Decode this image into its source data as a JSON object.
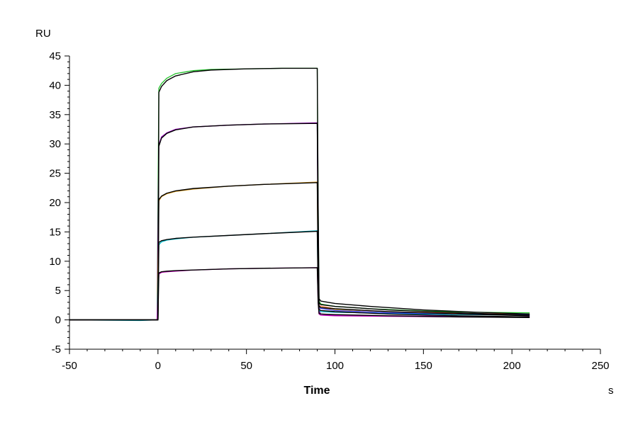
{
  "chart_data": {
    "type": "line",
    "title": "",
    "xlabel": "Time",
    "x_unit": "s",
    "ylabel": "",
    "y_unit": "RU",
    "xlim": [
      -50,
      250
    ],
    "ylim": [
      -5,
      45
    ],
    "x_ticks": [
      -50,
      0,
      50,
      100,
      150,
      200,
      250
    ],
    "y_ticks": [
      -5,
      0,
      5,
      10,
      15,
      20,
      25,
      30,
      35,
      40,
      45
    ],
    "grid": false,
    "legend": "none",
    "series": [
      {
        "color": "#22c22a",
        "points": [
          [
            -50,
            0.0
          ],
          [
            -0.5,
            0.0
          ],
          [
            0.5,
            39.5
          ],
          [
            2,
            40.3
          ],
          [
            5,
            41.2
          ],
          [
            10,
            42.0
          ],
          [
            20,
            42.5
          ],
          [
            30,
            42.7
          ],
          [
            50,
            42.8
          ],
          [
            70,
            42.9
          ],
          [
            90,
            42.9
          ],
          [
            90.5,
            20.0
          ],
          [
            91,
            3.2
          ],
          [
            92,
            2.7
          ],
          [
            100,
            2.3
          ],
          [
            120,
            1.9
          ],
          [
            150,
            1.5
          ],
          [
            180,
            1.3
          ],
          [
            210,
            1.2
          ]
        ]
      },
      {
        "color": "#a000c8",
        "points": [
          [
            -50,
            0.0
          ],
          [
            -0.5,
            0.0
          ],
          [
            0.5,
            29.8
          ],
          [
            2,
            31.2
          ],
          [
            5,
            31.9
          ],
          [
            10,
            32.5
          ],
          [
            20,
            32.9
          ],
          [
            40,
            33.2
          ],
          [
            60,
            33.4
          ],
          [
            90,
            33.6
          ],
          [
            90.5,
            12.0
          ],
          [
            91,
            1.5
          ],
          [
            92,
            1.0
          ],
          [
            100,
            0.8
          ],
          [
            130,
            0.7
          ],
          [
            170,
            0.6
          ],
          [
            210,
            0.5
          ]
        ]
      },
      {
        "color": "#e0a020",
        "points": [
          [
            -50,
            0.0
          ],
          [
            -0.5,
            0.0
          ],
          [
            0.5,
            20.3
          ],
          [
            2,
            21.0
          ],
          [
            5,
            21.5
          ],
          [
            10,
            21.9
          ],
          [
            20,
            22.3
          ],
          [
            40,
            22.8
          ],
          [
            60,
            23.1
          ],
          [
            90,
            23.5
          ],
          [
            90.5,
            8.0
          ],
          [
            91,
            2.3
          ],
          [
            92,
            2.0
          ],
          [
            100,
            1.7
          ],
          [
            130,
            1.2
          ],
          [
            170,
            1.0
          ],
          [
            210,
            0.9
          ]
        ]
      },
      {
        "color": "#00b8c8",
        "points": [
          [
            -50,
            0.0
          ],
          [
            -10,
            -0.1
          ],
          [
            -0.5,
            0.0
          ],
          [
            0.5,
            12.8
          ],
          [
            2,
            13.3
          ],
          [
            5,
            13.6
          ],
          [
            10,
            13.8
          ],
          [
            20,
            14.1
          ],
          [
            40,
            14.4
          ],
          [
            60,
            14.7
          ],
          [
            90,
            15.2
          ],
          [
            90.5,
            5.0
          ],
          [
            91,
            1.6
          ],
          [
            92,
            1.4
          ],
          [
            100,
            1.3
          ],
          [
            130,
            1.1
          ],
          [
            170,
            0.9
          ],
          [
            210,
            0.8
          ]
        ]
      },
      {
        "color": "#c000b8",
        "points": [
          [
            -50,
            0.0
          ],
          [
            -0.5,
            0.0
          ],
          [
            0.5,
            7.8
          ],
          [
            2,
            8.1
          ],
          [
            5,
            8.2
          ],
          [
            10,
            8.3
          ],
          [
            20,
            8.5
          ],
          [
            40,
            8.7
          ],
          [
            60,
            8.8
          ],
          [
            90,
            8.9
          ],
          [
            90.5,
            3.0
          ],
          [
            91,
            1.0
          ],
          [
            92,
            0.8
          ],
          [
            100,
            0.7
          ],
          [
            130,
            0.6
          ],
          [
            170,
            0.5
          ],
          [
            210,
            0.5
          ]
        ]
      },
      {
        "color": "#ff8040",
        "points": [
          [
            90,
            23.4
          ],
          [
            91,
            2.4
          ],
          [
            100,
            1.9
          ],
          [
            130,
            1.4
          ],
          [
            170,
            1.1
          ],
          [
            210,
            1.0
          ]
        ]
      },
      {
        "color": "#4040ff",
        "points": [
          [
            90,
            33.5
          ],
          [
            91,
            2.0
          ],
          [
            100,
            1.6
          ],
          [
            130,
            1.2
          ],
          [
            170,
            1.0
          ],
          [
            210,
            0.9
          ]
        ]
      },
      {
        "color": "#000000",
        "points": [
          [
            -50,
            0.0
          ],
          [
            0,
            0.0
          ],
          [
            0.5,
            38.8
          ],
          [
            2,
            39.8
          ],
          [
            5,
            40.8
          ],
          [
            10,
            41.6
          ],
          [
            20,
            42.3
          ],
          [
            30,
            42.6
          ],
          [
            50,
            42.8
          ],
          [
            70,
            42.9
          ],
          [
            90,
            42.9
          ],
          [
            90.5,
            20.0
          ],
          [
            91,
            3.6
          ],
          [
            92,
            3.2
          ],
          [
            100,
            2.8
          ],
          [
            120,
            2.3
          ],
          [
            150,
            1.7
          ],
          [
            180,
            1.3
          ],
          [
            210,
            1.0
          ]
        ]
      },
      {
        "color": "#000000",
        "points": [
          [
            -50,
            0.0
          ],
          [
            0,
            0.0
          ],
          [
            0.5,
            29.6
          ],
          [
            2,
            31.0
          ],
          [
            5,
            31.8
          ],
          [
            10,
            32.4
          ],
          [
            20,
            32.9
          ],
          [
            40,
            33.2
          ],
          [
            60,
            33.4
          ],
          [
            90,
            33.5
          ],
          [
            90.5,
            12.0
          ],
          [
            91,
            2.9
          ],
          [
            92,
            2.6
          ],
          [
            100,
            2.3
          ],
          [
            130,
            1.7
          ],
          [
            170,
            1.2
          ],
          [
            210,
            0.8
          ]
        ]
      },
      {
        "color": "#000000",
        "points": [
          [
            -50,
            0.0
          ],
          [
            0,
            0.0
          ],
          [
            0.5,
            20.5
          ],
          [
            2,
            21.1
          ],
          [
            5,
            21.6
          ],
          [
            10,
            22.0
          ],
          [
            20,
            22.4
          ],
          [
            40,
            22.8
          ],
          [
            60,
            23.1
          ],
          [
            90,
            23.4
          ],
          [
            90.5,
            8.0
          ],
          [
            91,
            2.4
          ],
          [
            92,
            2.1
          ],
          [
            100,
            1.9
          ],
          [
            130,
            1.4
          ],
          [
            170,
            1.0
          ],
          [
            210,
            0.7
          ]
        ]
      },
      {
        "color": "#000000",
        "points": [
          [
            -50,
            0.0
          ],
          [
            0,
            0.0
          ],
          [
            0.5,
            13.2
          ],
          [
            2,
            13.5
          ],
          [
            5,
            13.7
          ],
          [
            10,
            13.9
          ],
          [
            20,
            14.1
          ],
          [
            40,
            14.4
          ],
          [
            60,
            14.7
          ],
          [
            90,
            15.1
          ],
          [
            90.5,
            5.0
          ],
          [
            91,
            1.8
          ],
          [
            92,
            1.6
          ],
          [
            100,
            1.4
          ],
          [
            130,
            1.0
          ],
          [
            170,
            0.7
          ],
          [
            210,
            0.5
          ]
        ]
      },
      {
        "color": "#000000",
        "points": [
          [
            -50,
            0.0
          ],
          [
            0,
            0.0
          ],
          [
            0.5,
            8.0
          ],
          [
            2,
            8.2
          ],
          [
            5,
            8.3
          ],
          [
            10,
            8.4
          ],
          [
            20,
            8.5
          ],
          [
            40,
            8.7
          ],
          [
            60,
            8.8
          ],
          [
            90,
            8.9
          ],
          [
            90.5,
            3.0
          ],
          [
            91,
            1.1
          ],
          [
            92,
            1.0
          ],
          [
            100,
            0.9
          ],
          [
            130,
            0.7
          ],
          [
            170,
            0.5
          ],
          [
            210,
            0.4
          ]
        ]
      }
    ]
  }
}
